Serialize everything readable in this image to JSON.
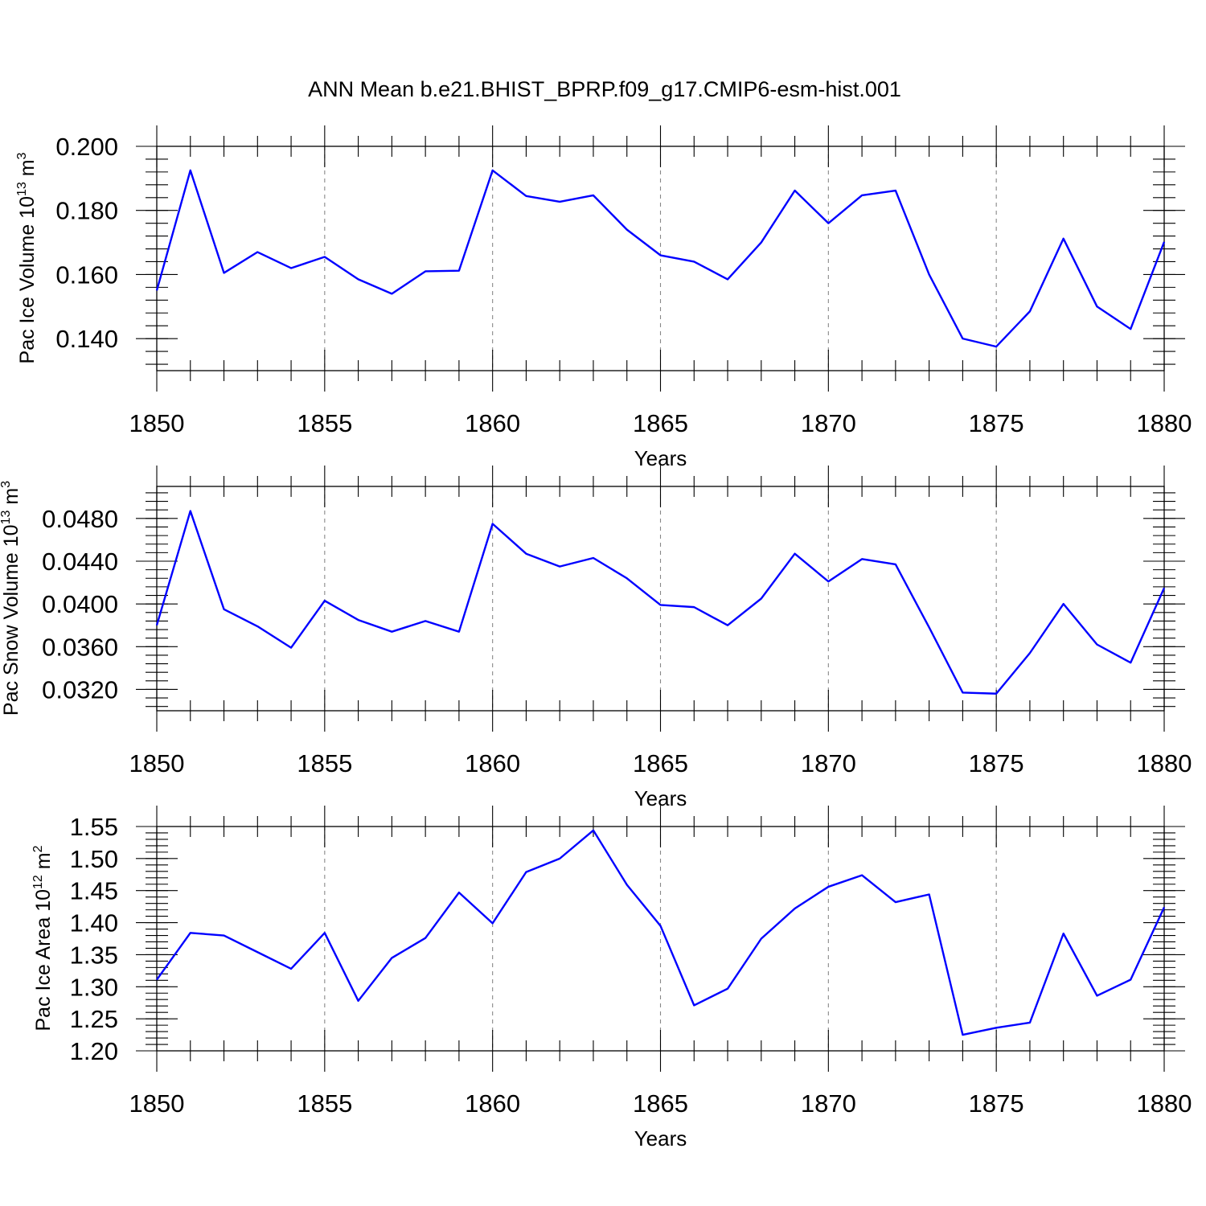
{
  "figure": {
    "title": "ANN Mean b.e21.BHIST_BPRP.f09_g17.CMIP6-esm-hist.001"
  },
  "chart_data": [
    {
      "type": "line",
      "title": "ANN Mean b.e21.BHIST_BPRP.f09_g17.CMIP6-esm-hist.001",
      "ylabel_main": "Pac Ice Volume 10",
      "ylabel_exp": "13",
      "ylabel_tail": " m",
      "ylabel_unit_exp": "3",
      "xlabel": "Years",
      "xlim": [
        1850,
        1880
      ],
      "ylim": [
        0.13,
        0.2
      ],
      "xticks": [
        1850,
        1855,
        1860,
        1865,
        1870,
        1875,
        1880
      ],
      "xtick_labels": [
        "1850",
        "1855",
        "1860",
        "1865",
        "1870",
        "1875",
        "1880"
      ],
      "yticks": [
        0.14,
        0.16,
        0.18,
        0.2
      ],
      "ytick_labels": [
        "0.140",
        "0.160",
        "0.180",
        "0.200"
      ],
      "y_minor_step": 0.004,
      "color": "#0000ff",
      "series": [
        {
          "name": "Pac Ice Volume",
          "x": [
            1850,
            1851,
            1852,
            1853,
            1854,
            1855,
            1856,
            1857,
            1858,
            1859,
            1860,
            1861,
            1862,
            1863,
            1864,
            1865,
            1866,
            1867,
            1868,
            1869,
            1870,
            1871,
            1872,
            1873,
            1874,
            1875,
            1876,
            1877,
            1878,
            1879,
            1880
          ],
          "values": [
            0.155,
            0.1925,
            0.1605,
            0.167,
            0.162,
            0.1655,
            0.1585,
            0.154,
            0.161,
            0.1612,
            0.1925,
            0.1845,
            0.1827,
            0.1847,
            0.174,
            0.166,
            0.164,
            0.1585,
            0.17,
            0.1862,
            0.176,
            0.1847,
            0.1862,
            0.16,
            0.14,
            0.1375,
            0.1485,
            0.1712,
            0.15,
            0.143,
            0.1702
          ]
        }
      ]
    },
    {
      "type": "line",
      "ylabel_main": "Pac Snow Volume 10",
      "ylabel_exp": "13",
      "ylabel_tail": " m",
      "ylabel_unit_exp": "3",
      "xlabel": "Years",
      "xlim": [
        1850,
        1880
      ],
      "ylim": [
        0.03,
        0.051
      ],
      "xticks": [
        1850,
        1855,
        1860,
        1865,
        1870,
        1875,
        1880
      ],
      "xtick_labels": [
        "1850",
        "1855",
        "1860",
        "1865",
        "1870",
        "1875",
        "1880"
      ],
      "yticks": [
        0.032,
        0.036,
        0.04,
        0.044,
        0.048
      ],
      "ytick_labels": [
        "0.0320",
        "0.0360",
        "0.0400",
        "0.0440",
        "0.0480"
      ],
      "y_minor_step": 0.0008,
      "color": "#0000ff",
      "series": [
        {
          "name": "Pac Snow Volume",
          "x": [
            1850,
            1851,
            1852,
            1853,
            1854,
            1855,
            1856,
            1857,
            1858,
            1859,
            1860,
            1861,
            1862,
            1863,
            1864,
            1865,
            1866,
            1867,
            1868,
            1869,
            1870,
            1871,
            1872,
            1873,
            1874,
            1875,
            1876,
            1877,
            1878,
            1879,
            1880
          ],
          "values": [
            0.038,
            0.0487,
            0.0395,
            0.0379,
            0.0359,
            0.0403,
            0.0385,
            0.0374,
            0.0384,
            0.0374,
            0.0475,
            0.0447,
            0.0435,
            0.0443,
            0.0424,
            0.0399,
            0.0397,
            0.038,
            0.0405,
            0.0447,
            0.0421,
            0.0442,
            0.0437,
            0.0378,
            0.0317,
            0.0316,
            0.0354,
            0.04,
            0.0362,
            0.0345,
            0.0415
          ]
        }
      ]
    },
    {
      "type": "line",
      "ylabel_main": "Pac Ice Area 10",
      "ylabel_exp": "12",
      "ylabel_tail": " m",
      "ylabel_unit_exp": "2",
      "xlabel": "Years",
      "xlim": [
        1850,
        1880
      ],
      "ylim": [
        1.2,
        1.55
      ],
      "xticks": [
        1850,
        1855,
        1860,
        1865,
        1870,
        1875,
        1880
      ],
      "xtick_labels": [
        "1850",
        "1855",
        "1860",
        "1865",
        "1870",
        "1875",
        "1880"
      ],
      "yticks": [
        1.2,
        1.25,
        1.3,
        1.35,
        1.4,
        1.45,
        1.5,
        1.55
      ],
      "ytick_labels": [
        "1.20",
        "1.25",
        "1.30",
        "1.35",
        "1.40",
        "1.45",
        "1.50",
        "1.55"
      ],
      "y_minor_step": 0.01,
      "color": "#0000ff",
      "series": [
        {
          "name": "Pac Ice Area",
          "x": [
            1850,
            1851,
            1852,
            1853,
            1854,
            1855,
            1856,
            1857,
            1858,
            1859,
            1860,
            1861,
            1862,
            1863,
            1864,
            1865,
            1866,
            1867,
            1868,
            1869,
            1870,
            1871,
            1872,
            1873,
            1874,
            1875,
            1876,
            1877,
            1878,
            1879,
            1880
          ],
          "values": [
            1.311,
            1.384,
            1.38,
            1.354,
            1.328,
            1.384,
            1.278,
            1.345,
            1.376,
            1.447,
            1.399,
            1.479,
            1.5,
            1.544,
            1.459,
            1.395,
            1.271,
            1.297,
            1.375,
            1.422,
            1.456,
            1.474,
            1.432,
            1.444,
            1.225,
            1.236,
            1.244,
            1.383,
            1.286,
            1.311,
            1.424
          ]
        }
      ]
    }
  ]
}
